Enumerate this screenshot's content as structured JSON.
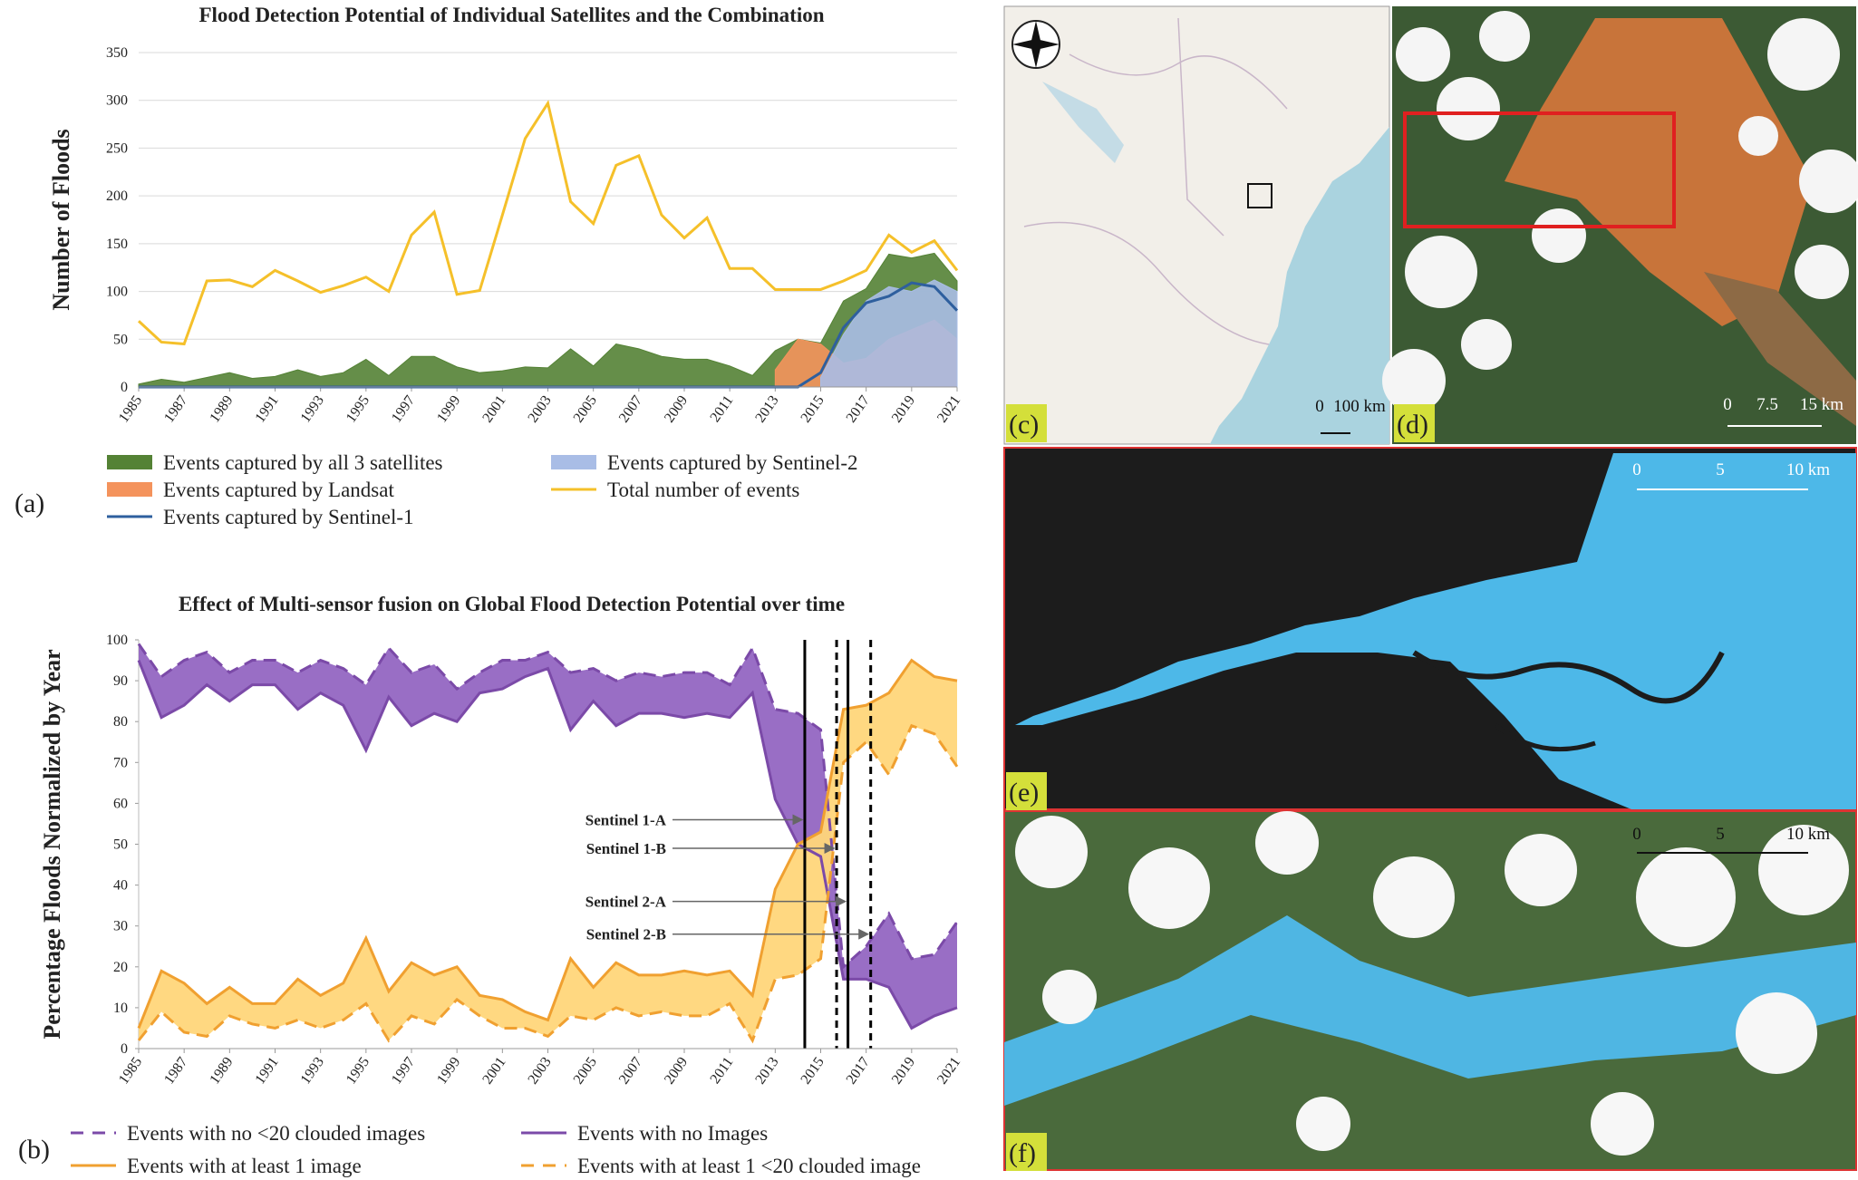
{
  "chart_data": [
    {
      "type": "line",
      "title": "Flood Detection Potential of Individual Satellites and the Combination",
      "ylabel": "Number of Floods",
      "x": [
        1985,
        1986,
        1987,
        1988,
        1989,
        1990,
        1991,
        1992,
        1993,
        1994,
        1995,
        1996,
        1997,
        1998,
        1999,
        2000,
        2001,
        2002,
        2003,
        2004,
        2005,
        2006,
        2007,
        2008,
        2009,
        2010,
        2011,
        2012,
        2013,
        2014,
        2015,
        2016,
        2017,
        2018,
        2019,
        2020,
        2021
      ],
      "xlim": [
        1985,
        2021
      ],
      "xticks": [
        1985,
        1987,
        1989,
        1991,
        1993,
        1995,
        1997,
        1999,
        2001,
        2003,
        2005,
        2007,
        2009,
        2011,
        2013,
        2015,
        2017,
        2019,
        2021
      ],
      "ylim": [
        0,
        350
      ],
      "yticks": [
        0,
        50,
        100,
        150,
        200,
        250,
        300,
        350
      ],
      "grid": true,
      "series": [
        {
          "name": "Events captured by all 3 satellites",
          "kind": "area",
          "color": "#548235",
          "values": [
            3,
            8,
            5,
            10,
            15,
            9,
            11,
            18,
            11,
            15,
            29,
            12,
            32,
            32,
            21,
            15,
            17,
            21,
            20,
            40,
            22,
            45,
            40,
            32,
            29,
            29,
            22,
            12,
            38,
            50,
            46,
            90,
            103,
            139,
            135,
            140,
            111
          ]
        },
        {
          "name": "Events captured by Landsat",
          "kind": "area",
          "color": "#f4935c",
          "values": [
            null,
            null,
            null,
            null,
            null,
            null,
            null,
            null,
            null,
            null,
            null,
            null,
            null,
            null,
            null,
            null,
            null,
            null,
            null,
            null,
            null,
            null,
            null,
            null,
            null,
            null,
            null,
            null,
            18,
            50,
            45,
            25,
            30,
            50,
            60,
            70,
            50
          ]
        },
        {
          "name": "Events captured by Sentinel-1",
          "kind": "line",
          "color": "#2e5f9e",
          "values": [
            0,
            0,
            0,
            0,
            0,
            0,
            0,
            0,
            0,
            0,
            0,
            0,
            0,
            0,
            0,
            0,
            0,
            0,
            0,
            0,
            0,
            0,
            0,
            0,
            0,
            0,
            0,
            0,
            0,
            0,
            15,
            62,
            88,
            95,
            109,
            105,
            80
          ]
        },
        {
          "name": "Events captured by Sentinel-2",
          "kind": "area",
          "color": "#a9bde6",
          "values": [
            null,
            null,
            null,
            null,
            null,
            null,
            null,
            null,
            null,
            null,
            null,
            null,
            null,
            null,
            null,
            null,
            null,
            null,
            null,
            null,
            null,
            null,
            null,
            null,
            null,
            null,
            null,
            null,
            null,
            null,
            10,
            55,
            90,
            105,
            100,
            112,
            100
          ]
        },
        {
          "name": "Total number of events",
          "kind": "line",
          "color": "#f5c02a",
          "values": [
            69,
            47,
            45,
            111,
            112,
            105,
            122,
            111,
            99,
            106,
            115,
            100,
            159,
            183,
            97,
            101,
            180,
            260,
            297,
            194,
            171,
            232,
            242,
            180,
            156,
            177,
            124,
            124,
            102,
            102,
            102,
            111,
            122,
            159,
            141,
            153,
            122
          ]
        }
      ]
    },
    {
      "type": "band-line",
      "title": "Effect of Multi-sensor fusion on Global Flood Detection Potential over time",
      "ylabel": "Percentage Floods Normalized by Year",
      "x": [
        1985,
        1986,
        1987,
        1988,
        1989,
        1990,
        1991,
        1992,
        1993,
        1994,
        1995,
        1996,
        1997,
        1998,
        1999,
        2000,
        2001,
        2002,
        2003,
        2004,
        2005,
        2006,
        2007,
        2008,
        2009,
        2010,
        2011,
        2012,
        2013,
        2014,
        2015,
        2016,
        2017,
        2018,
        2019,
        2020,
        2021
      ],
      "xlim": [
        1985,
        2021
      ],
      "xticks": [
        1985,
        1987,
        1989,
        1991,
        1993,
        1995,
        1997,
        1999,
        2001,
        2003,
        2005,
        2007,
        2009,
        2011,
        2013,
        2015,
        2017,
        2019,
        2021
      ],
      "ylim": [
        0,
        100
      ],
      "yticks": [
        0,
        10,
        20,
        30,
        40,
        50,
        60,
        70,
        80,
        90,
        100
      ],
      "grid": false,
      "band_colors": [
        "#9466c2",
        "#ffd67a"
      ],
      "series": [
        {
          "name": "Events with no <20 clouded images",
          "color": "#7b4aa8",
          "dash": true,
          "values": [
            99,
            91,
            95,
            97,
            92,
            95,
            95,
            92,
            95,
            93,
            89,
            98,
            92,
            94,
            88,
            92,
            95,
            95,
            97,
            92,
            93,
            90,
            92,
            91,
            92,
            92,
            89,
            98,
            83,
            82,
            78,
            20,
            25,
            33,
            22,
            23,
            31
          ]
        },
        {
          "name": "Events with no Images",
          "color": "#7b4aa8",
          "dash": false,
          "values": [
            95,
            81,
            84,
            89,
            85,
            89,
            89,
            83,
            87,
            84,
            73,
            86,
            79,
            82,
            80,
            87,
            88,
            91,
            93,
            78,
            85,
            79,
            82,
            82,
            81,
            82,
            81,
            87,
            61,
            50,
            47,
            17,
            17,
            15,
            5,
            8,
            10
          ]
        },
        {
          "name": "Events with at least 1 image",
          "color": "#f0a030",
          "dash": false,
          "values": [
            5,
            19,
            16,
            11,
            15,
            11,
            11,
            17,
            13,
            16,
            27,
            14,
            21,
            18,
            20,
            13,
            12,
            9,
            7,
            22,
            15,
            21,
            18,
            18,
            19,
            18,
            19,
            13,
            39,
            50,
            53,
            83,
            84,
            87,
            95,
            91,
            90
          ]
        },
        {
          "name": "Events with at least 1 <20 clouded image",
          "color": "#f0a030",
          "dash": true,
          "values": [
            2,
            9,
            4,
            3,
            8,
            6,
            5,
            7,
            5,
            7,
            11,
            2,
            8,
            6,
            12,
            8,
            5,
            5,
            3,
            8,
            7,
            10,
            8,
            9,
            8,
            8,
            11,
            2,
            17,
            18,
            22,
            70,
            75,
            67,
            79,
            77,
            69
          ]
        }
      ],
      "annotations": [
        {
          "label": "Sentinel 1-A",
          "x": 2014.3,
          "y": 56,
          "dash": false
        },
        {
          "label": "Sentinel 1-B",
          "x": 2015.7,
          "y": 49,
          "dash": true
        },
        {
          "label": "Sentinel 2-A",
          "x": 2016.2,
          "y": 36,
          "dash": false
        },
        {
          "label": "Sentinel 2-B",
          "x": 2017.2,
          "y": 28,
          "dash": true
        }
      ]
    }
  ],
  "figure": {
    "panel_labels": [
      "(a)",
      "(b)"
    ],
    "maps": [
      {
        "label": "(c)",
        "scale": [
          "0",
          "100 km"
        ]
      },
      {
        "label": "(d)",
        "scale": [
          "0",
          "7.5",
          "15 km"
        ]
      },
      {
        "label": "(e)",
        "scale": [
          "0",
          "5",
          "10 km"
        ]
      },
      {
        "label": "(f)",
        "scale": [
          "0",
          "5",
          "10 km"
        ]
      }
    ]
  }
}
